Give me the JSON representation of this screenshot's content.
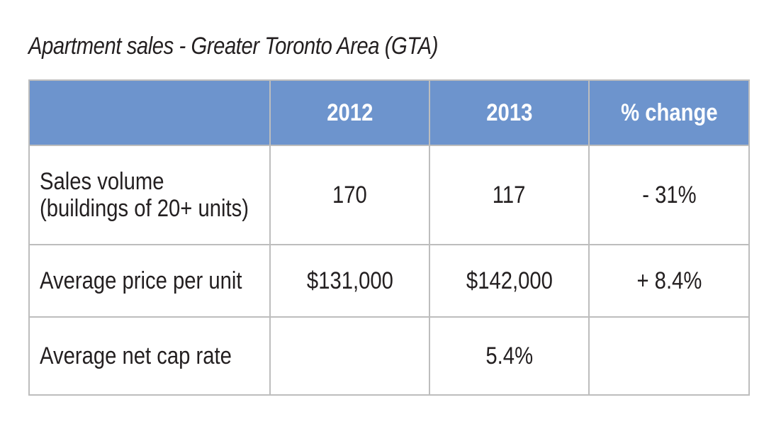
{
  "chart_data": {
    "type": "table",
    "title": "Apartment sales - Greater Toronto Area (GTA)",
    "columns": [
      "",
      "2012",
      "2013",
      "% change"
    ],
    "rows": [
      {
        "label_lines": [
          "Sales volume",
          "(buildings of 20+ units)"
        ],
        "y2012": "170",
        "y2013": "117",
        "change": "- 31%"
      },
      {
        "label_lines": [
          "Average price per unit"
        ],
        "y2012": "$131,000",
        "y2013": "$142,000",
        "change": "+ 8.4%"
      },
      {
        "label_lines": [
          "Average net cap rate"
        ],
        "y2012": "",
        "y2013": "5.4%",
        "change": ""
      }
    ]
  },
  "colors": {
    "header_bg": "#6d94cd",
    "header_text": "#ffffff",
    "border": "#bdbdbd",
    "text": "#231f20"
  }
}
